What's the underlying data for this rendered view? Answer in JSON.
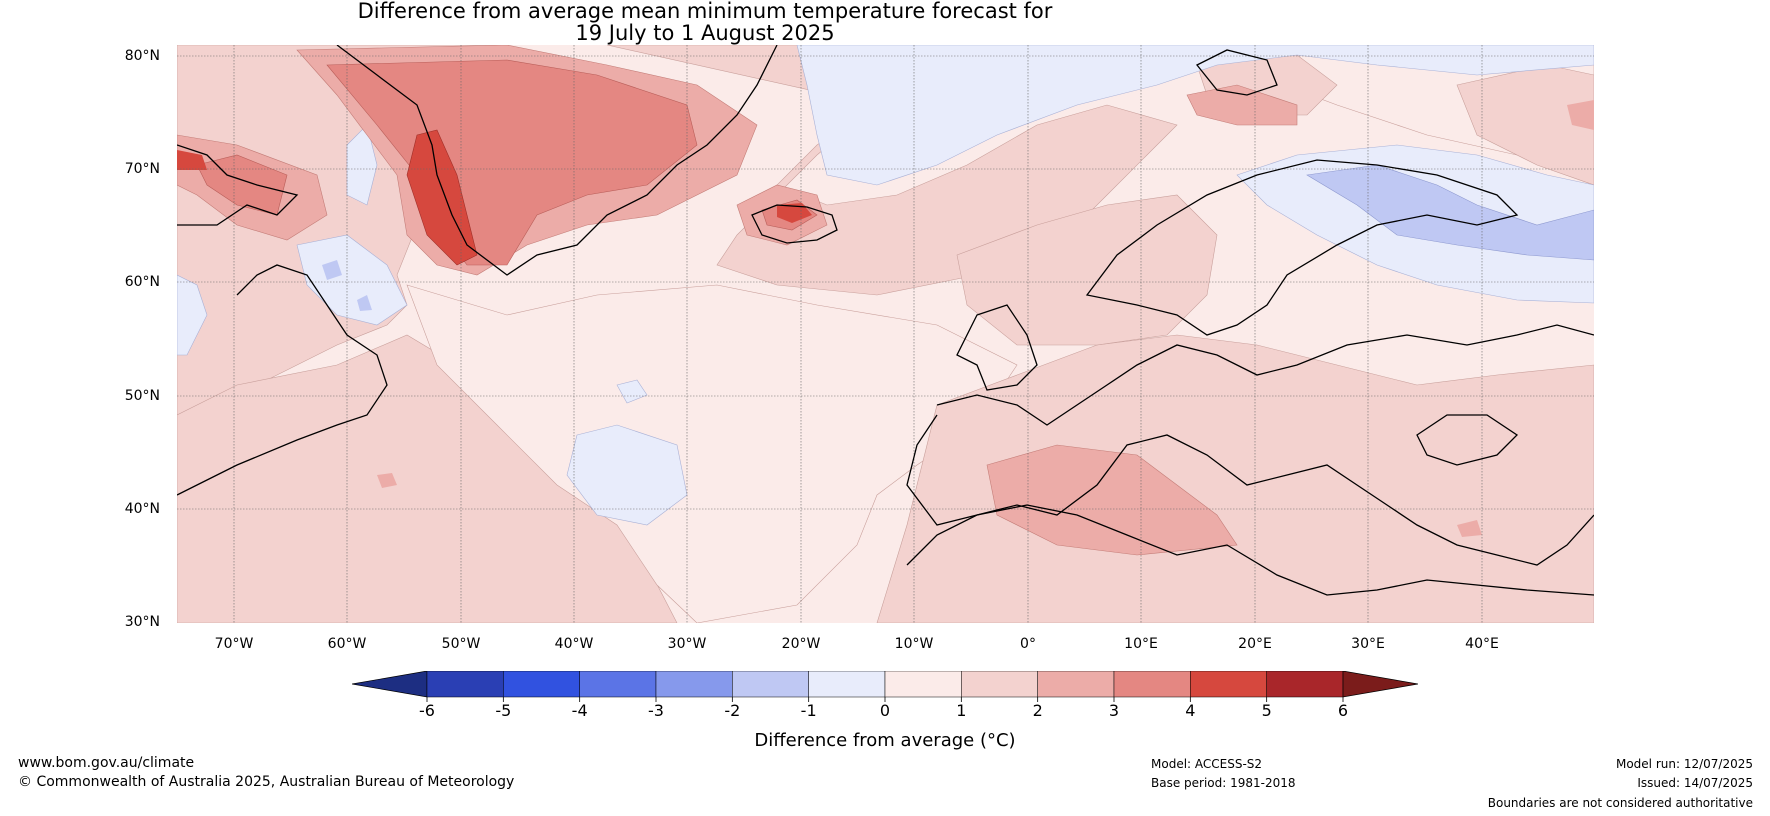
{
  "title": {
    "line1": "Difference from average mean minimum temperature forecast for",
    "line2": "19 July to 1 August 2025"
  },
  "axes": {
    "lat_labels": [
      "80°N",
      "70°N",
      "60°N",
      "50°N",
      "40°N",
      "30°N"
    ],
    "lon_labels": [
      "70°W",
      "60°W",
      "50°W",
      "40°W",
      "30°W",
      "20°W",
      "10°W",
      "0°",
      "10°E",
      "20°E",
      "30°E",
      "40°E"
    ],
    "lat_range": [
      30,
      81
    ],
    "lon_range": [
      -75,
      50
    ],
    "gridlines": true
  },
  "legend": {
    "ticks": [
      "-6",
      "-5",
      "-4",
      "-3",
      "-2",
      "-1",
      "0",
      "1",
      "2",
      "3",
      "4",
      "5",
      "6"
    ],
    "label": "Difference from average (°C)",
    "colors": [
      "#1d2e82",
      "#2a3fb4",
      "#3152e0",
      "#5b74e6",
      "#8699ec",
      "#bfc8f3",
      "#e8ecfb",
      "#fbebe9",
      "#f3d2cf",
      "#ecaca8",
      "#e48782",
      "#d6483e",
      "#a9262a",
      "#7b1c1b"
    ],
    "extend": "both"
  },
  "footer": {
    "website": "www.bom.gov.au/climate",
    "copyright": "© Commonwealth of Australia 2025, Australian Bureau of Meteorology",
    "model": "Model: ACCESS-S2",
    "base_period": "Base period: 1981-2018",
    "model_run": "Model run: 12/07/2025",
    "issued": "Issued: 14/07/2025",
    "disclaimer": "Boundaries are not considered authoritative"
  }
}
